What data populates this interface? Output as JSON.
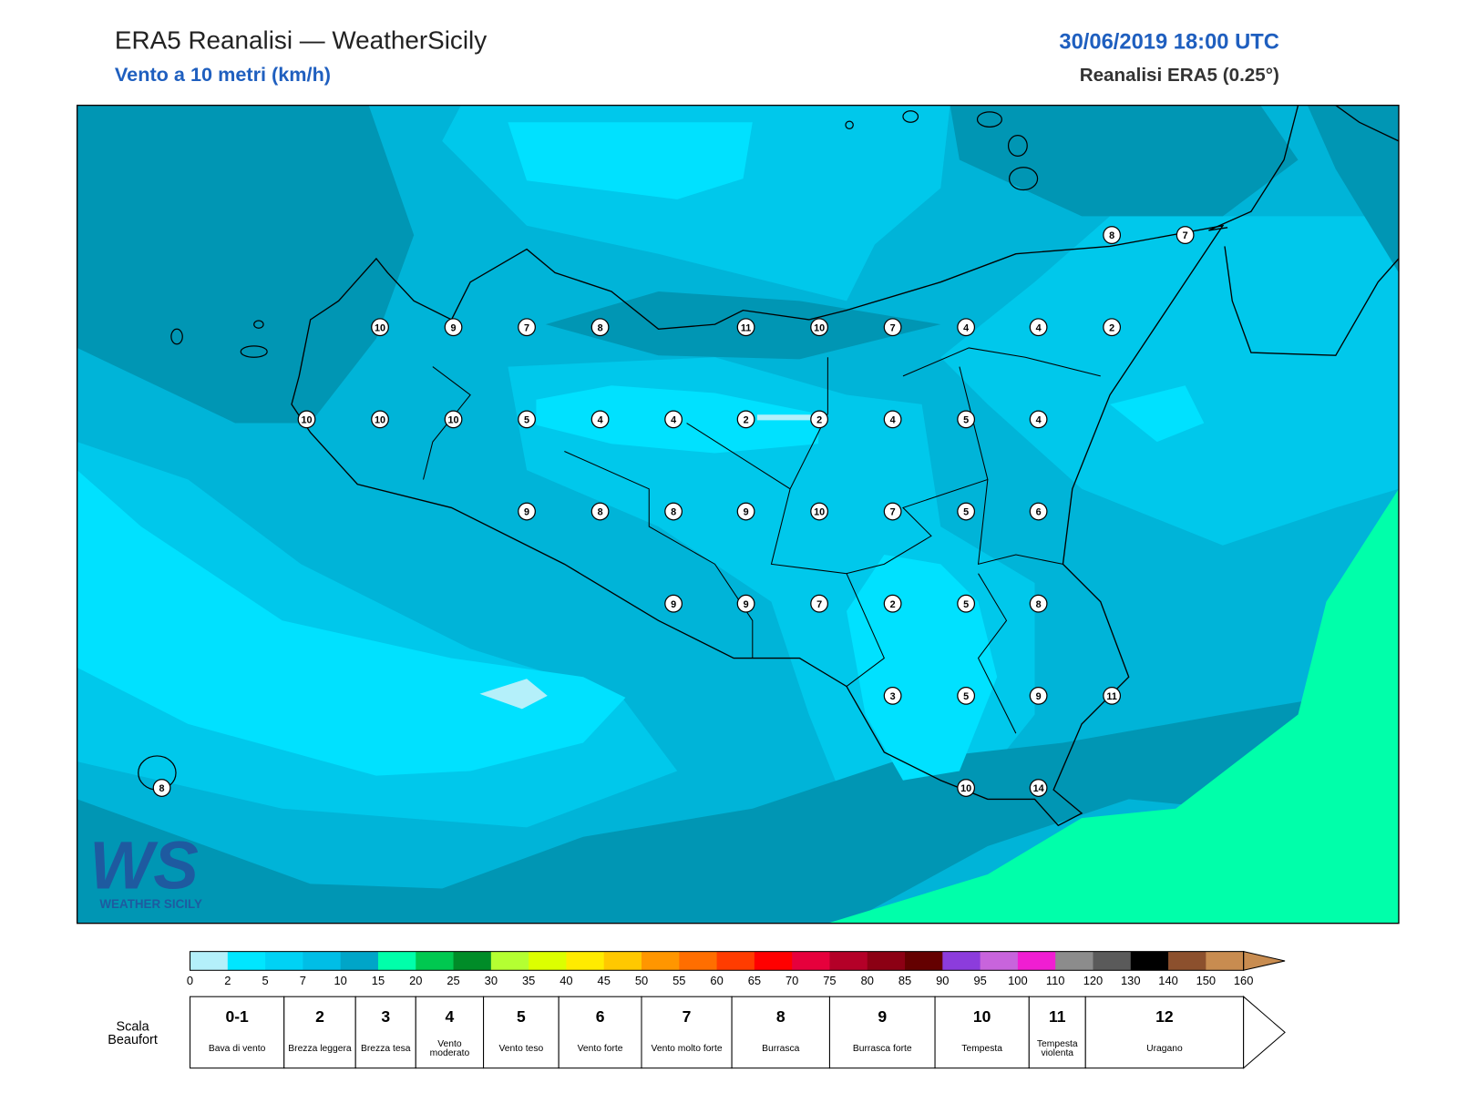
{
  "header": {
    "title": "ERA5 Reanalisi — WeatherSicily",
    "subtitle": "Vento a 10 metri (km/h)",
    "datetime": "30/06/2019 18:00 UTC",
    "source": "Reanalisi ERA5 (0.25°)"
  },
  "stations": [
    8,
    7,
    10,
    9,
    7,
    8,
    11,
    10,
    7,
    4,
    4,
    2,
    10,
    10,
    10,
    5,
    4,
    4,
    2,
    2,
    4,
    5,
    4,
    9,
    8,
    8,
    9,
    10,
    7,
    5,
    6,
    9,
    9,
    7,
    2,
    5,
    8,
    3,
    5,
    9,
    11,
    8,
    10,
    14
  ],
  "colorbar": {
    "ticks": [
      0,
      2,
      5,
      7,
      10,
      15,
      20,
      25,
      30,
      35,
      40,
      45,
      50,
      55,
      60,
      65,
      70,
      75,
      80,
      85,
      90,
      95,
      100,
      110,
      120,
      130,
      140,
      150,
      160
    ],
    "colors": [
      "#b4f0fa",
      "#00e6ff",
      "#00d2f5",
      "#00bee6",
      "#00a5c8",
      "#00ffaa",
      "#00c850",
      "#008c28",
      "#b4ff32",
      "#dcff00",
      "#ffeb00",
      "#ffc800",
      "#ff9600",
      "#ff6e00",
      "#ff3c00",
      "#ff0000",
      "#e6003c",
      "#b40028",
      "#8c0014",
      "#640000",
      "#8c3cdc",
      "#c864dc",
      "#f01ed2",
      "#8c8c8c",
      "#5a5a5a",
      "#000000",
      "#8c502d",
      "#c88c50"
    ]
  },
  "beaufort": {
    "label": "Scala Beaufort",
    "levels": [
      {
        "force": "0-1",
        "name": "Bava di vento"
      },
      {
        "force": 2,
        "name": "Brezza leggera"
      },
      {
        "force": 3,
        "name": "Brezza tesa"
      },
      {
        "force": 4,
        "name": "Vento moderato"
      },
      {
        "force": 5,
        "name": "Vento teso"
      },
      {
        "force": 6,
        "name": "Vento forte"
      },
      {
        "force": 7,
        "name": "Vento molto forte"
      },
      {
        "force": 8,
        "name": "Burrasca"
      },
      {
        "force": 9,
        "name": "Burrasca forte"
      },
      {
        "force": 10,
        "name": "Tempesta"
      },
      {
        "force": 11,
        "name": "Tempesta violenta"
      },
      {
        "force": 12,
        "name": "Uragano"
      }
    ]
  },
  "logo": {
    "initials": "WS",
    "name": "WEATHER SICILY"
  }
}
